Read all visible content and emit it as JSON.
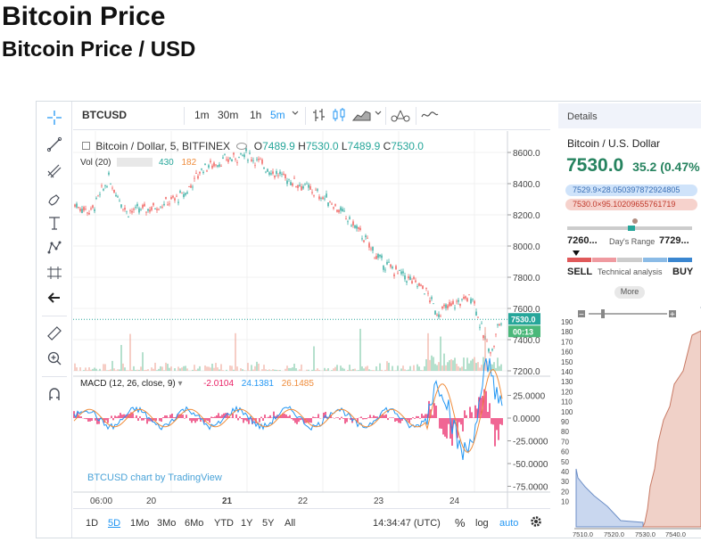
{
  "page": {
    "title": "Bitcoin Price",
    "subtitle": "Bitcoin Price / USD"
  },
  "toolbar": {
    "symbol": "BTCUSD",
    "intervals": [
      "1m",
      "30m",
      "1h",
      "5m"
    ],
    "active_interval": "5m"
  },
  "legend": {
    "name": "Bitcoin / Dollar, 5, BITFINEX",
    "o_label": "O",
    "o": "7489.9",
    "h_label": "H",
    "h": "7530.0",
    "l_label": "L",
    "l": "7489.9",
    "c_label": "C",
    "c": "7530.0",
    "vol_label": "Vol (20)",
    "vol_a": "430",
    "vol_b": "182",
    "macd_label": "MACD (12, 26, close, 9)",
    "macd_a": "-2.0104",
    "macd_b": "24.1381",
    "macd_c": "26.1485"
  },
  "price_axis": [
    "8600.0",
    "8400.0",
    "8200.0",
    "8000.0",
    "7800.0",
    "7600.0",
    "7400.0",
    "7200.0"
  ],
  "price_tag": "7530.0",
  "countdown": "00:13",
  "macd_axis": [
    "25.0000",
    "0.0000",
    "-25.0000",
    "-50.0000",
    "-75.0000"
  ],
  "time_axis": [
    "06:00",
    "20",
    "21",
    "22",
    "23",
    "24"
  ],
  "watermark": "BTCUSD chart by TradingView",
  "bottom": {
    "ranges": [
      "1D",
      "5D",
      "1Mo",
      "3Mo",
      "6Mo",
      "YTD",
      "1Y",
      "5Y",
      "All"
    ],
    "active_range": "5D",
    "clock": "14:34:47 (UTC)",
    "pct": "%",
    "log": "log",
    "auto": "auto"
  },
  "details": {
    "header": "Details",
    "pair": "Bitcoin / U.S. Dollar",
    "price_big": "7530.0",
    "change": "35.2 (0.47%",
    "bid": "7529.9×28.050397872924805",
    "ask": "7530.0×95.10209655761719",
    "low": "7260...",
    "range_label": "Day's Range",
    "high": "7729...",
    "sell": "SELL",
    "ta": "Technical analysis",
    "buy": "BUY",
    "more": "More"
  },
  "depth": {
    "y_axis": [
      "190",
      "180",
      "170",
      "160",
      "150",
      "140",
      "130",
      "120",
      "110",
      "100",
      "90",
      "80",
      "70",
      "60",
      "50",
      "40",
      "30",
      "20",
      "10"
    ],
    "x_axis": [
      "7510.0",
      "7520.0",
      "7530.0",
      "7540.0"
    ]
  },
  "colors": {
    "up": "#26a69a",
    "down": "#ef5350",
    "accent": "#2196f3",
    "vol_up": "#7cc9a6",
    "vol_down": "#f0a89a"
  }
}
